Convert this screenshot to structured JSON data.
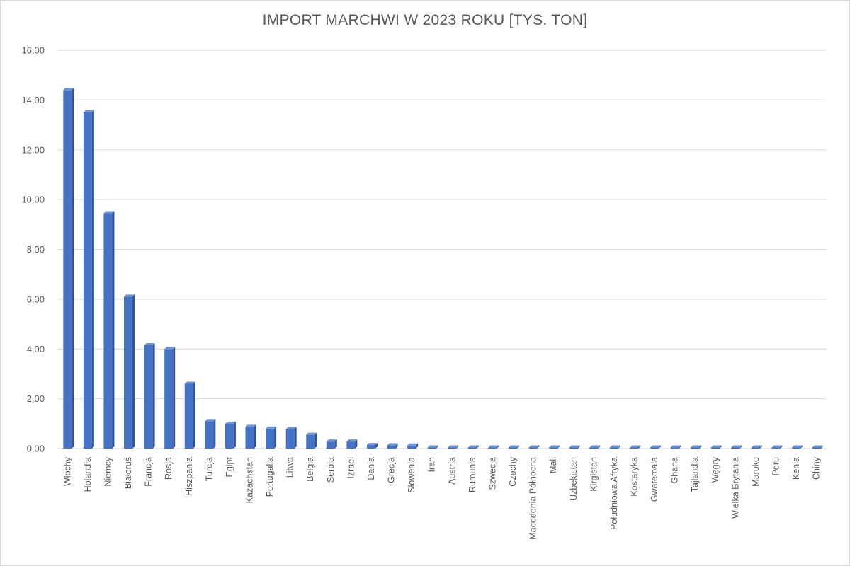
{
  "chart_data": {
    "type": "bar",
    "title": "IMPORT MARCHWI W 2023 ROKU [TYS. TON]",
    "xlabel": "",
    "ylabel": "",
    "ylim": [
      0,
      16
    ],
    "yticks": [
      "0,00",
      "2,00",
      "4,00",
      "6,00",
      "8,00",
      "10,00",
      "12,00",
      "14,00",
      "16,00"
    ],
    "grid": true,
    "bar_color": "#4472C4",
    "categories": [
      "Włochy",
      "Holandia",
      "Niemcy",
      "Białoruś",
      "Francja",
      "Rosja",
      "Hiszpania",
      "Turcja",
      "Egipt",
      "Kazachstan",
      "Portugalia",
      "Litwa",
      "Belgia",
      "Serbia",
      "Izrael",
      "Dania",
      "Grecja",
      "Słowenia",
      "Iran",
      "Austria",
      "Rumunia",
      "Szwecja",
      "Czechy",
      "Macedonia Północna",
      "Mali",
      "Uzbekistan",
      "Kirgistan",
      "Południowa Afryka",
      "Kostaryka",
      "Gwatemala",
      "Ghana",
      "Tajlandia",
      "Węgry",
      "Wielka Brytania",
      "Maroko",
      "Peru",
      "Kenia",
      "Chiny"
    ],
    "values": [
      14.4,
      13.5,
      9.45,
      6.1,
      4.15,
      4.0,
      2.6,
      1.1,
      1.0,
      0.87,
      0.8,
      0.78,
      0.55,
      0.28,
      0.28,
      0.14,
      0.13,
      0.12,
      0.04,
      0.03,
      0.03,
      0.03,
      0.03,
      0.02,
      0.02,
      0.02,
      0.02,
      0.02,
      0.01,
      0.01,
      0.01,
      0.01,
      0.01,
      0.01,
      0.01,
      0.01,
      0.01,
      0.01
    ]
  }
}
